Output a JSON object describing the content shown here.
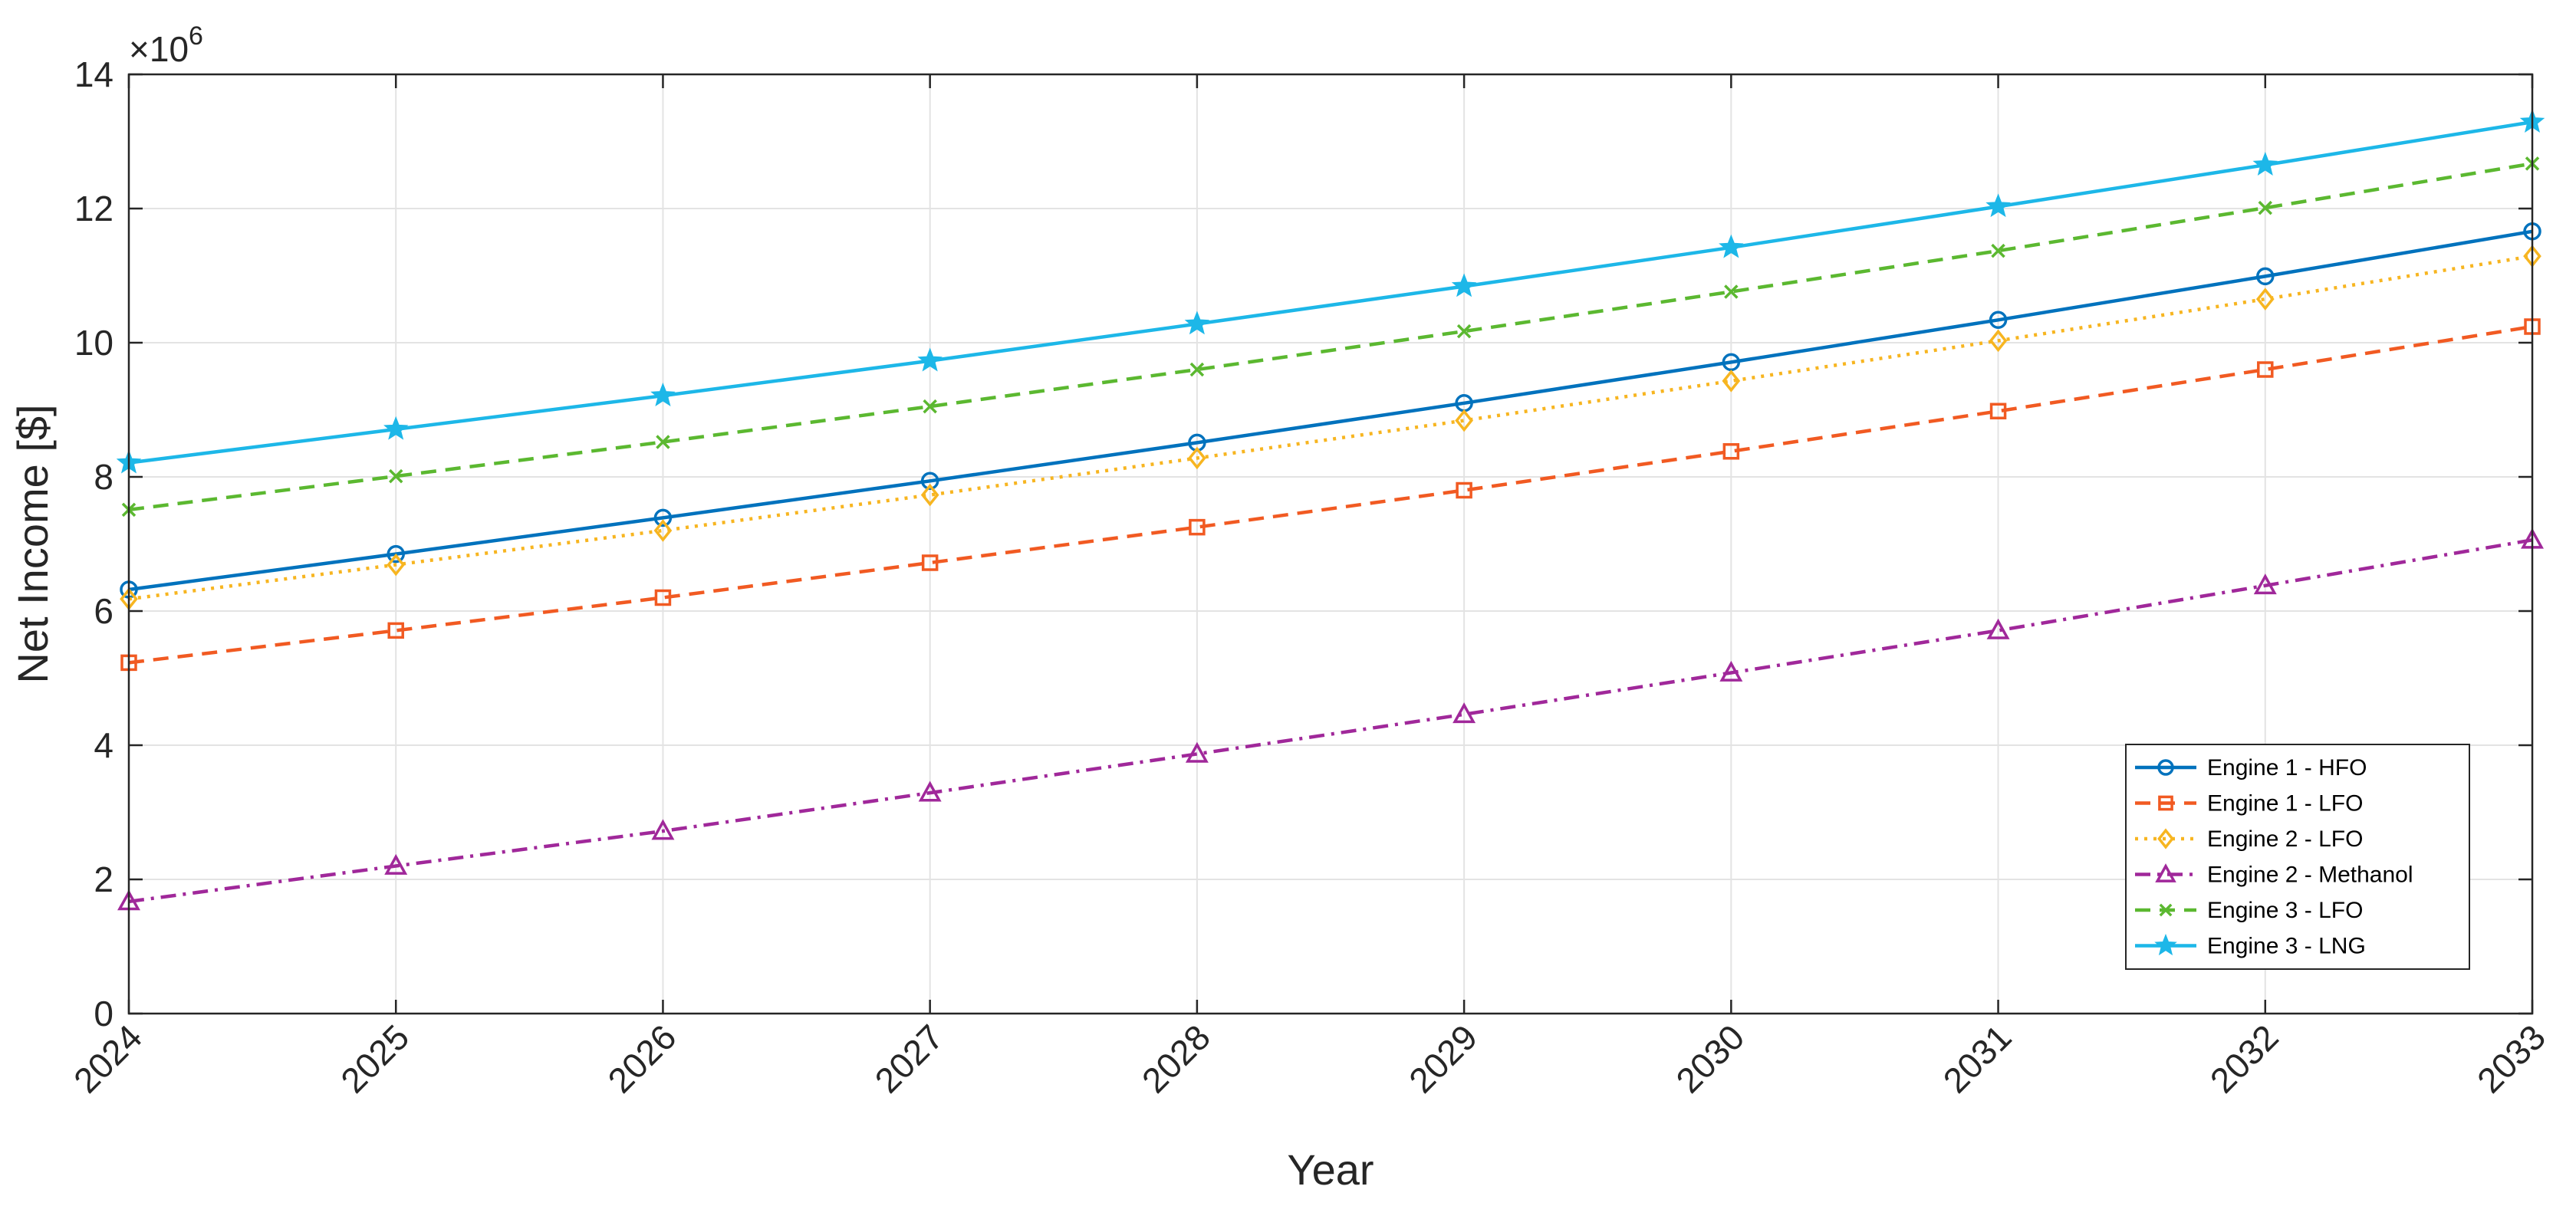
{
  "chart_data": {
    "type": "line",
    "xlabel": "Year",
    "ylabel": "Net Income [$]",
    "exponent_label": "×10",
    "exponent_power": "6",
    "x": [
      2024,
      2025,
      2026,
      2027,
      2028,
      2029,
      2030,
      2031,
      2032,
      2033
    ],
    "x_tick_labels": [
      "2024",
      "2025",
      "2026",
      "2027",
      "2028",
      "2029",
      "2030",
      "2031",
      "2032",
      "2033"
    ],
    "xlim": [
      2024,
      2033
    ],
    "ylim": [
      0,
      14
    ],
    "y_ticks": [
      0,
      2,
      4,
      6,
      8,
      10,
      12,
      14
    ],
    "y_tick_labels": [
      "0",
      "2",
      "4",
      "6",
      "8",
      "10",
      "12",
      "14"
    ],
    "y_scale": 1000000,
    "grid": true,
    "legend_position": "lower-right",
    "series": [
      {
        "name": "Engine 1 - HFO",
        "color": "#0072BD",
        "dash": "solid",
        "marker": "circle",
        "values": [
          6.32,
          6.85,
          7.39,
          7.94,
          8.51,
          9.1,
          9.71,
          10.34,
          10.99,
          11.66
        ]
      },
      {
        "name": "Engine 1 - LFO",
        "color": "#F15A22",
        "dash": "dashed",
        "marker": "square",
        "values": [
          5.23,
          5.71,
          6.2,
          6.72,
          7.25,
          7.8,
          8.38,
          8.98,
          9.6,
          10.24
        ]
      },
      {
        "name": "Engine 2 - LFO",
        "color": "#F7B520",
        "dash": "dotted",
        "marker": "diamond",
        "values": [
          6.18,
          6.69,
          7.2,
          7.73,
          8.28,
          8.84,
          9.43,
          10.03,
          10.65,
          11.29
        ]
      },
      {
        "name": "Engine 2 - Methanol",
        "color": "#A0289A",
        "dash": "dashdot",
        "marker": "triangle",
        "values": [
          1.67,
          2.2,
          2.72,
          3.29,
          3.87,
          4.46,
          5.08,
          5.71,
          6.38,
          7.06
        ]
      },
      {
        "name": "Engine 3 - LFO",
        "color": "#5BB830",
        "dash": "dashed",
        "marker": "x",
        "values": [
          7.51,
          8.01,
          8.52,
          9.05,
          9.6,
          10.17,
          10.76,
          11.37,
          12.01,
          12.67
        ]
      },
      {
        "name": "Engine 3 - LNG",
        "color": "#1DB7E8",
        "dash": "solid",
        "marker": "star",
        "values": [
          8.21,
          8.71,
          9.21,
          9.73,
          10.28,
          10.84,
          11.42,
          12.03,
          12.65,
          13.29
        ]
      }
    ]
  }
}
